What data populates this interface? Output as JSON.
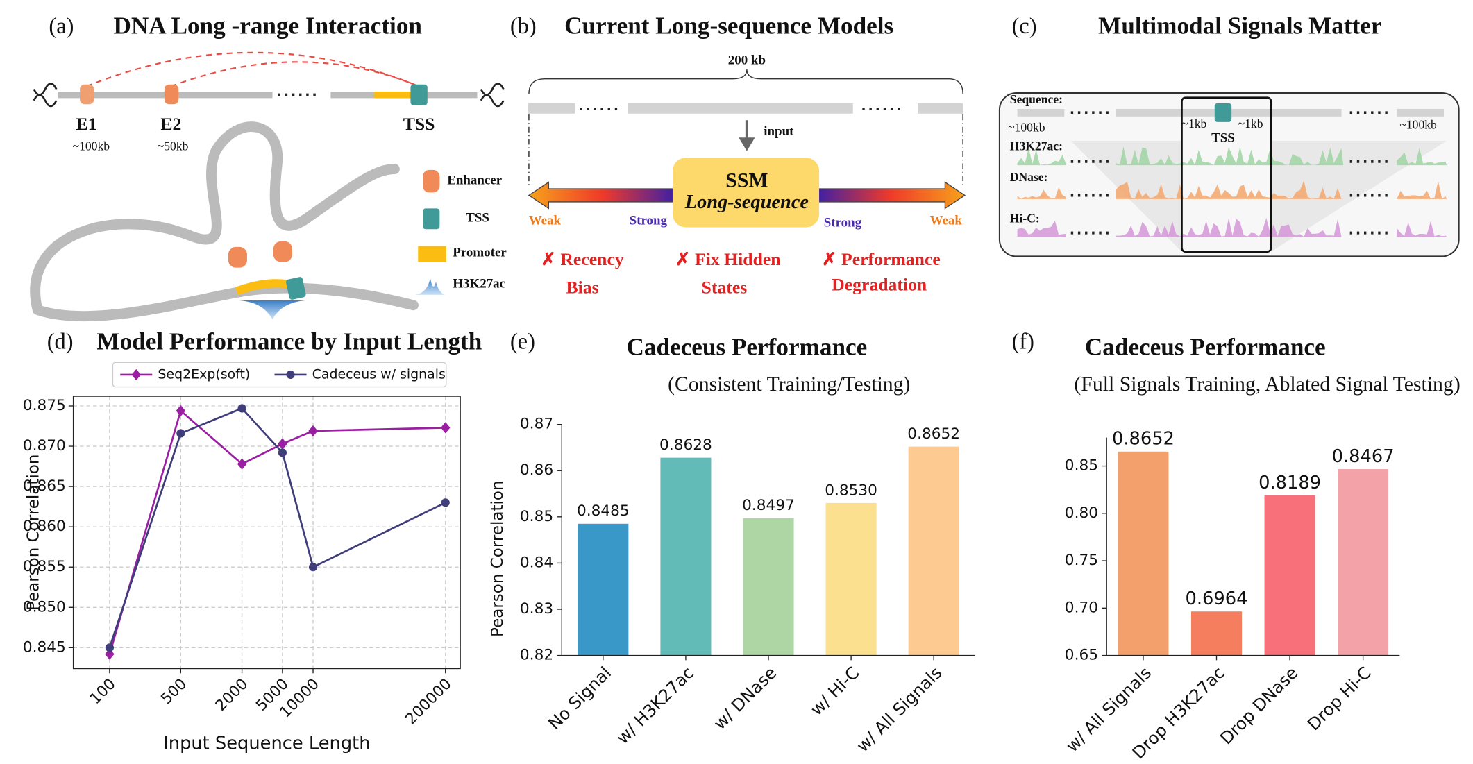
{
  "panels": {
    "a": {
      "label": "(a)",
      "title": "DNA Long -range Interaction",
      "enhancers": [
        {
          "name": "E1",
          "distance": "~100kb"
        },
        {
          "name": "E2",
          "distance": "~50kb"
        }
      ],
      "tss": "TSS",
      "legend": [
        "Enhancer",
        "TSS",
        "Promoter",
        "H3K27ac"
      ]
    },
    "b": {
      "label": "(b)",
      "title": "Current Long-sequence Models",
      "span": "200 kb",
      "input": "input",
      "model": "SSM",
      "model_subtitle": "Long-sequence",
      "ends": [
        "Weak",
        "Strong",
        "Strong",
        "Weak"
      ],
      "problems": [
        [
          "✗ Recency",
          "Bias"
        ],
        [
          "✗ Fix Hidden",
          "States"
        ],
        [
          "✗ Performance",
          "Degradation"
        ]
      ]
    },
    "c": {
      "label": "(c)",
      "title": "Multimodal Signals Matter",
      "sequence": "Sequence:",
      "far": "~100kb",
      "near": "~1kb",
      "tss": "TSS",
      "tracks": [
        "H3K27ac:",
        "DNase:",
        "Hi-C:"
      ]
    }
  },
  "chart_data": [
    {
      "type": "line",
      "label": "(d)",
      "title": "Model Performance by Input Length",
      "xlabel": "Input Sequence Length",
      "ylabel": "Pearson Correlation",
      "x": [
        100,
        500,
        2000,
        5000,
        10000,
        200000
      ],
      "series": [
        {
          "name": "Seq2Exp(soft)",
          "color": "#9b1fa3",
          "marker": "diamond",
          "values": [
            0.8442,
            0.8744,
            0.8678,
            0.8703,
            0.8719,
            0.8723
          ]
        },
        {
          "name": "Cadeceus w/ signals",
          "color": "#3f3d7a",
          "marker": "circle",
          "values": [
            0.845,
            0.8716,
            0.8747,
            0.8692,
            0.855,
            0.863
          ]
        }
      ],
      "xscale": "log",
      "xlim": [
        44,
        280000
      ],
      "xticks": [
        100,
        500,
        2000,
        5000,
        10000,
        200000
      ],
      "ylim": [
        0.8424,
        0.8762
      ],
      "yticks": [
        0.845,
        {
          "value": 0.85,
          "label": "0.850"
        },
        0.855,
        {
          "value": 0.86,
          "label": "0.860"
        },
        0.865,
        {
          "value": 0.87,
          "label": "0.870"
        },
        0.875
      ],
      "grid": true,
      "legend": "top"
    },
    {
      "type": "bar",
      "label": "(e)",
      "title": "Cadeceus Performance",
      "subtitle": "(Consistent Training/Testing)",
      "ylabel": "Pearson Correlation",
      "categories": [
        "No Signal",
        "w/ H3K27ac",
        "w/ DNase",
        "w/ Hi-C",
        "w/ All Signals"
      ],
      "values": [
        0.8485,
        0.8628,
        0.8497,
        0.853,
        0.8652
      ],
      "value_labels": [
        "0.8485",
        "0.8628",
        "0.8497",
        "0.8530",
        "0.8652"
      ],
      "colors": [
        "#3a98c9",
        "#63bbb7",
        "#aed5a4",
        "#fbe08f",
        "#fdcb92"
      ],
      "ylim": [
        0.82,
        0.87
      ],
      "yticks": [
        0.82,
        0.83,
        0.84,
        0.85,
        0.86,
        0.87
      ]
    },
    {
      "type": "bar",
      "label": "(f)",
      "title": "Cadeceus Performance",
      "subtitle": "(Full Signals Training, Ablated Signal Testing)",
      "categories": [
        "w/ All Signals",
        "Drop H3K27ac",
        "Drop DNase",
        "Drop Hi-C"
      ],
      "values": [
        0.8652,
        0.6964,
        0.8189,
        0.8467
      ],
      "value_labels": [
        "0.8652",
        "0.6964",
        "0.8189",
        "0.8467"
      ],
      "colors": [
        "#f4a06c",
        "#f47e5e",
        "#f7707a",
        "#f3a3a8"
      ],
      "ylim": [
        0.65,
        0.88
      ],
      "yticks": [
        0.65,
        {
          "value": 0.7,
          "label": "0.70"
        },
        0.75,
        {
          "value": 0.8,
          "label": "0.80"
        },
        0.85
      ]
    }
  ]
}
